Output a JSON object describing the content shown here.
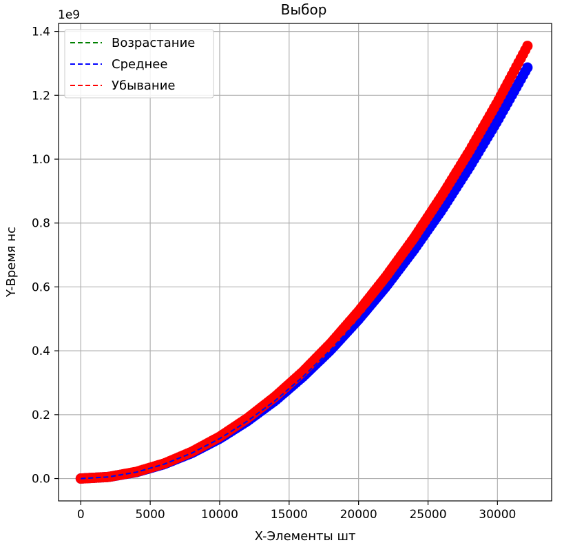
{
  "chart_data": {
    "type": "scatter",
    "title": "Выбор",
    "xlabel": "X-Элементы шт",
    "ylabel": "Y-Время нс",
    "y_offset_label": "1e9",
    "xlim": [
      -1600,
      33900
    ],
    "ylim": [
      -0.07,
      1.425
    ],
    "y_unit_multiplier": 1000000000,
    "x_ticks": [
      0,
      5000,
      10000,
      15000,
      20000,
      25000,
      30000
    ],
    "x_tick_labels": [
      "0",
      "5000",
      "10000",
      "15000",
      "20000",
      "25000",
      "30000"
    ],
    "y_ticks": [
      0.0,
      0.2,
      0.4,
      0.6,
      0.8,
      1.0,
      1.2,
      1.4
    ],
    "y_tick_labels": [
      "0.0",
      "0.2",
      "0.4",
      "0.6",
      "0.8",
      "1.0",
      "1.2",
      "1.4"
    ],
    "grid": true,
    "legend_position": "top-left",
    "series": [
      {
        "name": "Возрастание",
        "color": "#008000",
        "x": [
          0,
          2000,
          4000,
          6000,
          8000,
          10000,
          12000,
          14000,
          16000,
          18000,
          20000,
          22000,
          24000,
          26000,
          28000,
          30000,
          32200
        ],
        "y": [
          0.0,
          0.005,
          0.02,
          0.045,
          0.08,
          0.125,
          0.18,
          0.244,
          0.319,
          0.403,
          0.498,
          0.602,
          0.717,
          0.841,
          0.976,
          1.12,
          1.29
        ]
      },
      {
        "name": "Среднее",
        "color": "#0000ff",
        "x": [
          0,
          2000,
          4000,
          6000,
          8000,
          10000,
          12000,
          14000,
          16000,
          18000,
          20000,
          22000,
          24000,
          26000,
          28000,
          30000,
          32200
        ],
        "y": [
          0.0,
          0.005,
          0.02,
          0.045,
          0.08,
          0.125,
          0.18,
          0.244,
          0.319,
          0.403,
          0.498,
          0.602,
          0.717,
          0.841,
          0.976,
          1.12,
          1.29
        ]
      },
      {
        "name": "Убывание",
        "color": "#ff0000",
        "x": [
          0,
          2000,
          4000,
          6000,
          8000,
          10000,
          12000,
          14000,
          16000,
          18000,
          20000,
          22000,
          24000,
          26000,
          28000,
          30000,
          32200
        ],
        "y": [
          0.0,
          0.005,
          0.021,
          0.047,
          0.084,
          0.131,
          0.189,
          0.257,
          0.335,
          0.424,
          0.524,
          0.634,
          0.754,
          0.886,
          1.027,
          1.179,
          1.358
        ]
      }
    ]
  }
}
